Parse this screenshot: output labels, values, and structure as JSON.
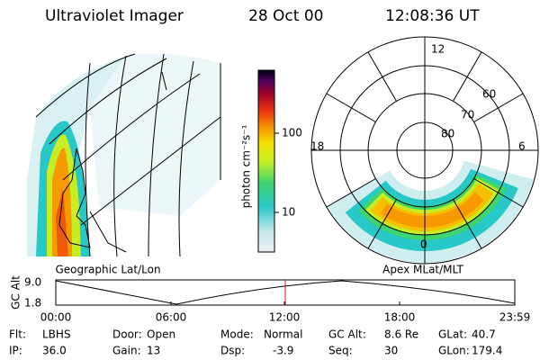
{
  "header": {
    "instrument": "Ultraviolet Imager",
    "date": "28 Oct 00",
    "time": "12:08:36 UT"
  },
  "left_panel": {
    "label": "Geographic Lat/Lon"
  },
  "right_panel": {
    "label": "Apex MLat/MLT",
    "mlt_labels": [
      12,
      18,
      6,
      0
    ],
    "mlat_labels": [
      60,
      70,
      80
    ]
  },
  "colorbar": {
    "label": "photon cm⁻²s⁻¹",
    "ticks": [
      100,
      10
    ]
  },
  "altitude_plot": {
    "ylabel": "GC Alt",
    "yticks": [
      "9.0",
      "1.8"
    ],
    "xticks": [
      "00:00",
      "06:00",
      "12:00",
      "18:00",
      "23:59"
    ]
  },
  "status": {
    "rows": [
      [
        {
          "label": "Flt:",
          "value": "LBHS"
        },
        {
          "label": "Door:",
          "value": "Open"
        },
        {
          "label": "Mode:",
          "value": "Normal"
        },
        {
          "label": "GC Alt:",
          "value": "8.6 Re"
        },
        {
          "label": "GLat:",
          "value": 40.7
        }
      ],
      [
        {
          "label": "IP:",
          "value": "36.0"
        },
        {
          "label": "Gain:",
          "value": 13
        },
        {
          "label": "Dsp:",
          "value": -3.9
        },
        {
          "label": "Seq:",
          "value": 30
        },
        {
          "label": "GLon:",
          "value": 179.4
        }
      ]
    ]
  }
}
